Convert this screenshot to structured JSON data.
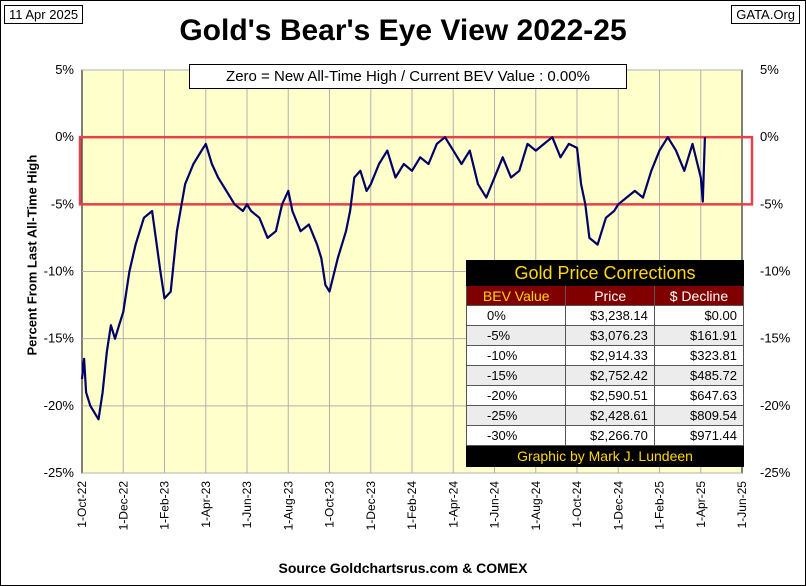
{
  "header": {
    "date": "11 Apr 2025",
    "site": "GATA.Org",
    "title": "Gold's Bear's Eye View 2022-25",
    "source": "Source Goldchartsrus.com & COMEX"
  },
  "colors": {
    "plot_bg": "#ffffcc",
    "line": "#000066",
    "band": "#e8404a"
  },
  "chart_data": {
    "type": "line",
    "title": "Gold's Bear's Eye View 2022-25",
    "ylabel": "Percent  From  Last  All-Time  High",
    "legend_text": "Zero = New All-Time High / Current  BEV Value : 0.00%",
    "ylim": [
      -25,
      5
    ],
    "y_ticks": [
      "5%",
      "0%",
      "-5%",
      "-10%",
      "-15%",
      "-20%",
      "-25%"
    ],
    "y_tick_values": [
      5,
      0,
      -5,
      -10,
      -15,
      -20,
      -25
    ],
    "x_ticks": [
      "1-Oct-22",
      "1-Dec-22",
      "1-Feb-23",
      "1-Apr-23",
      "1-Jun-23",
      "1-Aug-23",
      "1-Oct-23",
      "1-Dec-23",
      "1-Feb-24",
      "1-Apr-24",
      "1-Jun-24",
      "1-Aug-24",
      "1-Oct-24",
      "1-Dec-24",
      "1-Feb-25",
      "1-Apr-25",
      "1-Jun-25"
    ],
    "highlight_band": [
      -5,
      0
    ],
    "series": [
      {
        "name": "BEV",
        "x": [
          0.0,
          0.05,
          0.1,
          0.15,
          0.2,
          0.3,
          0.4,
          0.5,
          0.6,
          0.7,
          0.8,
          0.9,
          1.0,
          1.15,
          1.3,
          1.5,
          1.7,
          1.9,
          2.0,
          2.15,
          2.3,
          2.5,
          2.7,
          2.9,
          3.0,
          3.15,
          3.3,
          3.5,
          3.7,
          3.9,
          4.0,
          4.1,
          4.3,
          4.5,
          4.7,
          4.85,
          5.0,
          5.1,
          5.3,
          5.5,
          5.7,
          5.8,
          5.9,
          6.0,
          6.2,
          6.4,
          6.5,
          6.6,
          6.75,
          6.9,
          7.0,
          7.2,
          7.4,
          7.6,
          7.8,
          8.0,
          8.2,
          8.4,
          8.6,
          8.8,
          9.0,
          9.2,
          9.4,
          9.6,
          9.8,
          10.0,
          10.2,
          10.4,
          10.6,
          10.8,
          11.0,
          11.2,
          11.4,
          11.6,
          11.8,
          12.0,
          12.1,
          12.2,
          12.3,
          12.5,
          12.7,
          12.9,
          13.0,
          13.2,
          13.4,
          13.6,
          13.8,
          14.0,
          14.2,
          14.4,
          14.6,
          14.8,
          15.0,
          15.05,
          15.1
        ],
        "values": [
          -18.0,
          -16.5,
          -19.0,
          -19.5,
          -20.0,
          -20.5,
          -21.0,
          -19.0,
          -16.0,
          -14.0,
          -15.0,
          -14.0,
          -13.0,
          -10.0,
          -8.0,
          -6.0,
          -5.5,
          -10.0,
          -12.0,
          -11.5,
          -7.0,
          -3.5,
          -2.0,
          -1.0,
          -0.5,
          -2.0,
          -3.0,
          -4.0,
          -5.0,
          -5.5,
          -5.0,
          -5.5,
          -6.0,
          -7.5,
          -7.0,
          -5.0,
          -4.0,
          -5.5,
          -7.0,
          -6.5,
          -8.0,
          -9.0,
          -11.0,
          -11.5,
          -9.0,
          -7.0,
          -5.5,
          -3.0,
          -2.5,
          -4.0,
          -3.5,
          -2.0,
          -1.0,
          -3.0,
          -2.0,
          -2.5,
          -1.5,
          -2.0,
          -0.5,
          0.0,
          -1.0,
          -2.0,
          -1.0,
          -3.5,
          -4.5,
          -3.0,
          -1.5,
          -3.0,
          -2.5,
          -0.5,
          -1.0,
          -0.5,
          0.0,
          -1.5,
          -0.5,
          -0.8,
          -3.5,
          -5.0,
          -7.5,
          -8.0,
          -6.0,
          -5.5,
          -5.0,
          -4.5,
          -4.0,
          -4.5,
          -2.5,
          -1.0,
          0.0,
          -1.0,
          -2.5,
          -0.5,
          -3.0,
          -4.8,
          0.0
        ]
      }
    ]
  },
  "table": {
    "title": "Gold Price Corrections",
    "headers": [
      "BEV Value",
      "Price",
      "$ Decline"
    ],
    "rows": [
      [
        "0%",
        "$3,238.14",
        "$0.00"
      ],
      [
        "-5%",
        "$3,076.23",
        "$161.91"
      ],
      [
        "-10%",
        "$2,914.33",
        "$323.81"
      ],
      [
        "-15%",
        "$2,752.42",
        "$485.72"
      ],
      [
        "-20%",
        "$2,590.51",
        "$647.63"
      ],
      [
        "-25%",
        "$2,428.61",
        "$809.54"
      ],
      [
        "-30%",
        "$2,266.70",
        "$971.44"
      ]
    ],
    "footer": "Graphic by Mark J. Lundeen"
  }
}
